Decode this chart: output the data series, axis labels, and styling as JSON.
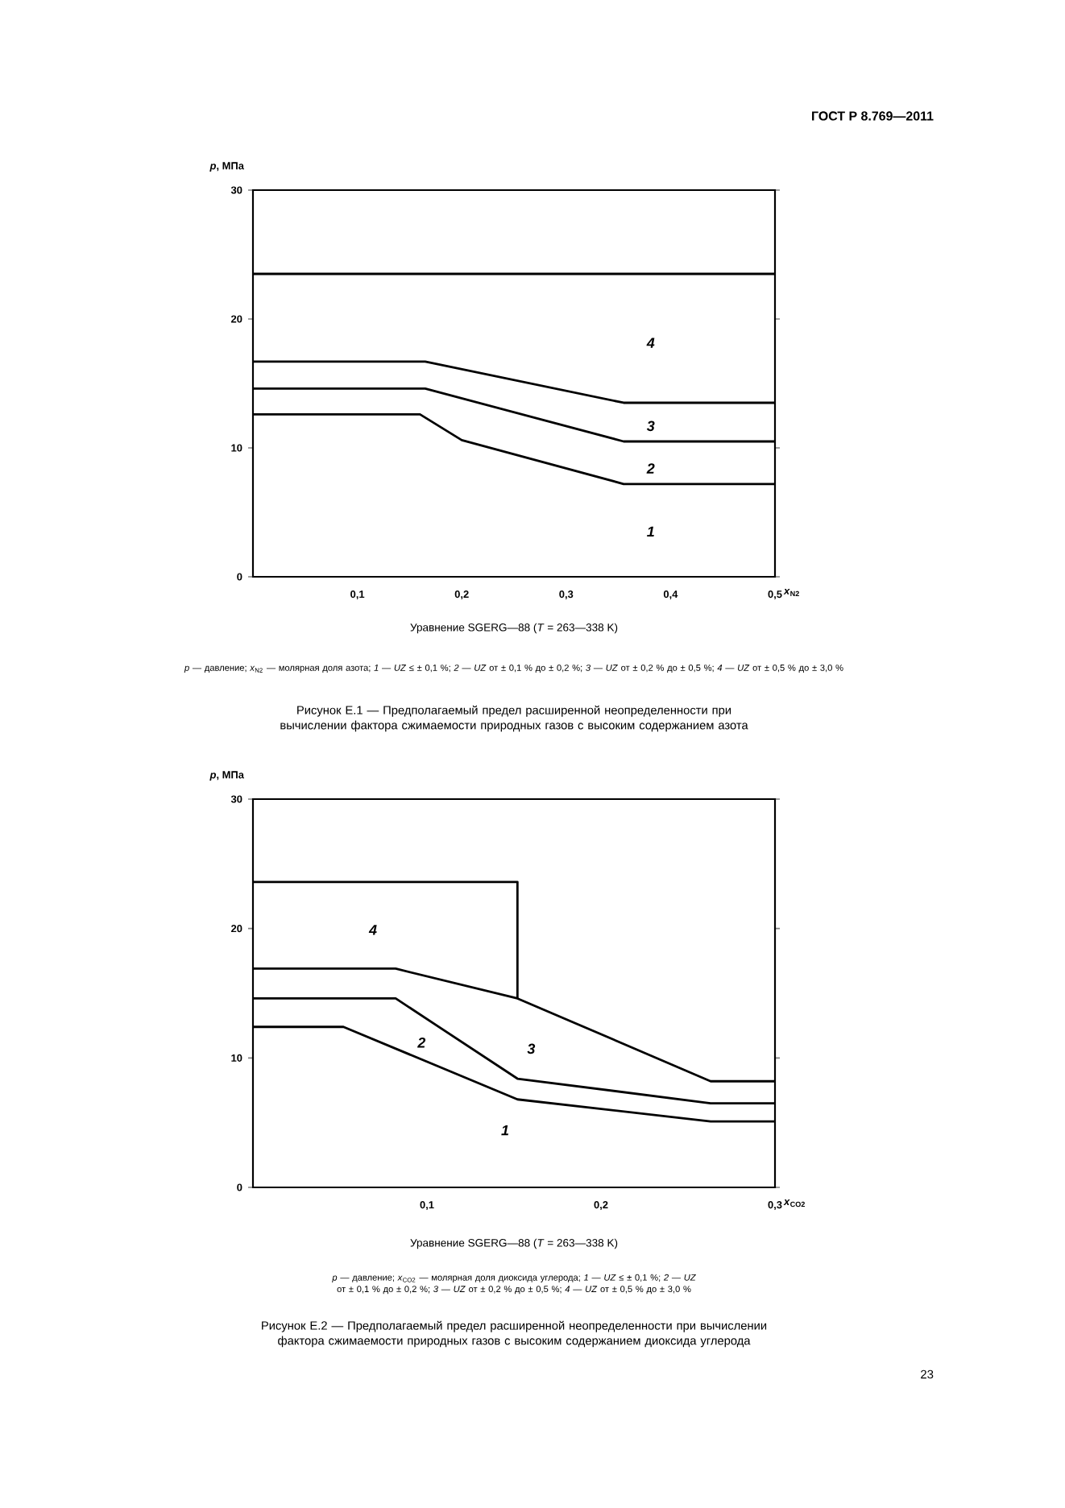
{
  "chart_data": [
    {
      "type": "line",
      "title": "Рисунок Е.1 — Предполагаемый предел расширенной неопределенности при вычислении фактора сжимаемости природных газов с высоким содержанием азота",
      "subtitle": "Уравнение SGERG—88 (*T* = 263—338 K)",
      "xlabel": "*x*$_{N2}$",
      "ylabel": "*p*, МПа",
      "xlim": [
        0,
        0.5
      ],
      "ylim": [
        0,
        30
      ],
      "xticks": [
        {
          "value": 0.1,
          "label": "0,1"
        },
        {
          "value": 0.2,
          "label": "0,2"
        },
        {
          "value": 0.3,
          "label": "0,3"
        },
        {
          "value": 0.4,
          "label": "0,4"
        },
        {
          "value": 0.5,
          "label": "0,5"
        }
      ],
      "yticks": [
        0,
        10,
        20,
        30
      ],
      "series": [
        {
          "color": "#000000",
          "x": [
            0,
            0.5
          ],
          "values": [
            23.5,
            23.5
          ]
        },
        {
          "color": "#000000",
          "x": [
            0,
            0.165,
            0.355,
            0.5
          ],
          "values": [
            16.7,
            16.7,
            13.5,
            13.5
          ]
        },
        {
          "color": "#000000",
          "x": [
            0,
            0.165,
            0.355,
            0.5
          ],
          "values": [
            14.6,
            14.6,
            10.5,
            10.5
          ]
        },
        {
          "color": "#000000",
          "x": [
            0,
            0.16,
            0.2,
            0.355,
            0.5
          ],
          "values": [
            12.6,
            12.6,
            10.6,
            7.2,
            7.2
          ]
        }
      ],
      "annotations": [
        "4",
        "3",
        "2",
        "1",
        "*p* — давление; *x*$_{N2}$ — молярная доля азота; *1* — *UZ* ≤ ± 0,1 %; *2* — *UZ* от ± 0,1 % до ± 0,2 %; *3* — *UZ* от ± 0,2 % до ± 0,5 %; *4* — *UZ* от ± 0,5 % до ± 3,0 %",
        "**ГОСТ Р 8.769—2011**"
      ]
    },
    {
      "type": "line",
      "title": "Рисунок Е.2 — Предполагаемый предел расширенной неопределенности при вычислении фактора сжимаемости природных газов с высоким содержанием диоксида углерода",
      "subtitle": "Уравнение SGERG—88 (*T* = 263—338 K)",
      "xlabel": "*x*$_{CO2}$",
      "ylabel": "*p*, МПа",
      "xlim": [
        0,
        0.3
      ],
      "ylim": [
        0,
        30
      ],
      "xticks": [
        {
          "value": 0.1,
          "label": "0,1"
        },
        {
          "value": 0.2,
          "label": "0,2"
        },
        {
          "value": 0.3,
          "label": "0,3"
        }
      ],
      "yticks": [
        0,
        10,
        20,
        30
      ],
      "series": [
        {
          "color": "#000000",
          "x": [
            0,
            0.152,
            0.152
          ],
          "values": [
            23.6,
            23.6,
            14.6
          ]
        },
        {
          "color": "#000000",
          "x": [
            0,
            0.082,
            0.152,
            0.263,
            0.3
          ],
          "values": [
            16.9,
            16.9,
            14.6,
            8.2,
            8.2
          ]
        },
        {
          "color": "#000000",
          "x": [
            0,
            0.082,
            0.152,
            0.263,
            0.3
          ],
          "values": [
            14.6,
            14.6,
            8.4,
            6.5,
            6.5
          ]
        },
        {
          "color": "#000000",
          "x": [
            0,
            0.052,
            0.152,
            0.263,
            0.3
          ],
          "values": [
            12.4,
            12.4,
            6.8,
            5.1,
            5.1
          ]
        }
      ],
      "annotations": [
        "4",
        "3",
        "2",
        "1",
        "*p* — давление; *x*$_{CO2}$ — молярная доля диоксида углерода; *1* — *UZ* ≤ ± 0,1 %; *2* — *UZ* от ± 0,1 % до ± 0,2 %; *3* — *UZ* от ± 0,2 % до ± 0,5 %; *4* — *UZ* от ± 0,5 % до ± 3,0 %",
        "23"
      ]
    }
  ]
}
